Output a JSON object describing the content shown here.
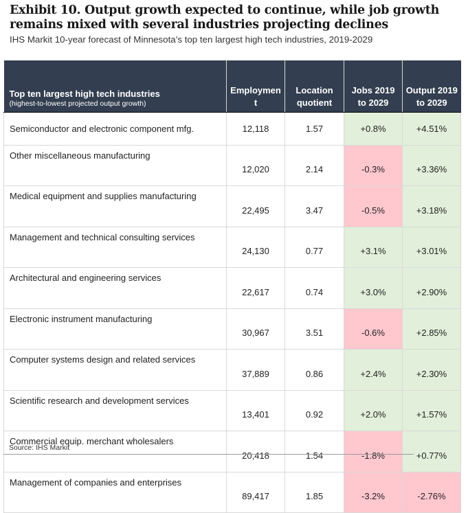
{
  "title": "Exhibit 10. Output growth expected to continue, while job growth remains mixed with several industries projecting declines",
  "subtitle": "IHS Markit 10-year forecast of Minnesota’s top ten largest high tech industries, 2019-2029",
  "table": {
    "headers": {
      "industry": "Top ten largest high tech industries",
      "industry_sub": "(highest-to-lowest projected output growth)",
      "employment": "Employmen t",
      "location_quotient": "Location quotient",
      "jobs": "Jobs 2019 to 2029",
      "output": "Output 2019 to 2029"
    },
    "rows": [
      {
        "industry": "Semiconductor and electronic component mfg.",
        "employment": "12,118",
        "lq": "1.57",
        "jobs": "+0.8%",
        "output": "+4.51%"
      },
      {
        "industry": "Other miscellaneous manufacturing",
        "employment": "12,020",
        "lq": "2.14",
        "jobs": "-0.3%",
        "output": "+3.36%"
      },
      {
        "industry": "Medical equipment and supplies manufacturing",
        "employment": "22,495",
        "lq": "3.47",
        "jobs": "-0.5%",
        "output": "+3.18%"
      },
      {
        "industry": "Management and technical consulting services",
        "employment": "24,130",
        "lq": "0.77",
        "jobs": "+3.1%",
        "output": "+3.01%"
      },
      {
        "industry": "Architectural and engineering services",
        "employment": "22,617",
        "lq": "0.74",
        "jobs": "+3.0%",
        "output": "+2.90%"
      },
      {
        "industry": "Electronic instrument manufacturing",
        "employment": "30,967",
        "lq": "3.51",
        "jobs": "-0.6%",
        "output": "+2.85%"
      },
      {
        "industry": "Computer systems design and related services",
        "employment": "37,889",
        "lq": "0.86",
        "jobs": "+2.4%",
        "output": "+2.30%"
      },
      {
        "industry": "Scientific research and development services",
        "employment": "13,401",
        "lq": "0.92",
        "jobs": "+2.0%",
        "output": "+1.57%"
      },
      {
        "industry": "Commercial equip. merchant wholesalers",
        "employment": "20,418",
        "lq": "1.54",
        "jobs": "-1.8%",
        "output": "+0.77%"
      },
      {
        "industry": "Management of companies and enterprises",
        "employment": "89,417",
        "lq": "1.85",
        "jobs": "-3.2%",
        "output": "-2.76%"
      }
    ]
  },
  "colors": {
    "header_bg": "#333f50",
    "positive_bg": "#e2efda",
    "negative_bg": "#ffc7ce"
  },
  "source": "Source: IHS Markit"
}
